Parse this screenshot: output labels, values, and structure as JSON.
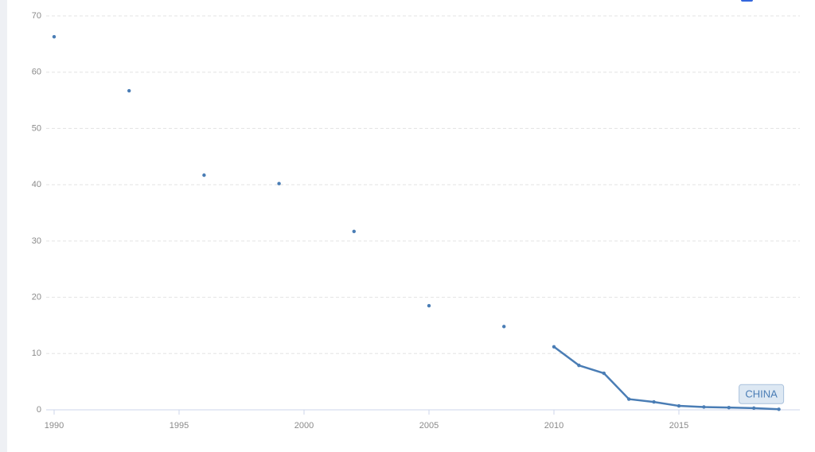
{
  "chart_data": {
    "type": "line",
    "x": [
      1990,
      1991,
      1992,
      1993,
      1994,
      1995,
      1996,
      1997,
      1998,
      1999,
      2000,
      2001,
      2002,
      2003,
      2004,
      2005,
      2006,
      2007,
      2008,
      2009,
      2010,
      2011,
      2012,
      2013,
      2014,
      2015,
      2016,
      2017,
      2018,
      2019
    ],
    "series": [
      {
        "name": "CHINA",
        "color": "#4a7db5",
        "values": [
          66.3,
          null,
          null,
          56.7,
          null,
          null,
          41.7,
          null,
          null,
          40.2,
          null,
          null,
          31.7,
          null,
          null,
          18.5,
          null,
          null,
          14.8,
          null,
          11.2,
          7.9,
          6.5,
          1.9,
          1.4,
          0.7,
          0.5,
          0.4,
          0.3,
          0.1
        ]
      }
    ],
    "xlim": [
      1990,
      2020
    ],
    "xticks": [
      1990,
      1995,
      2000,
      2005,
      2010,
      2015
    ],
    "ylim": [
      0,
      70
    ],
    "yticks": [
      0,
      10,
      20,
      30,
      40,
      50,
      60,
      70
    ],
    "grid": true
  }
}
